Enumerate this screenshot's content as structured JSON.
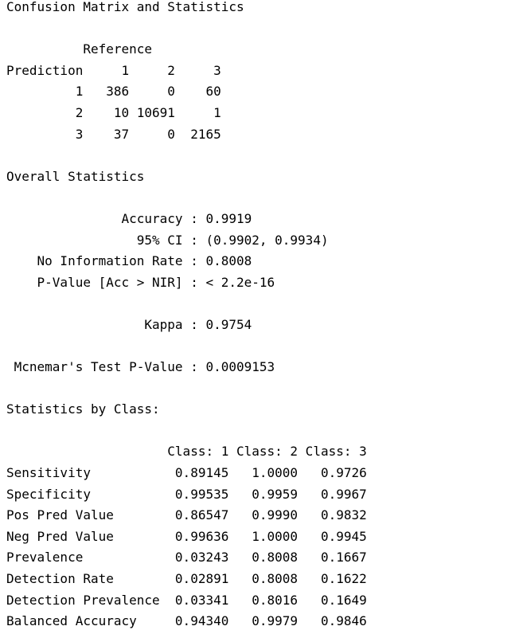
{
  "output_lines": [
    "Confusion Matrix and Statistics",
    "",
    "          Reference",
    "Prediction     1     2     3",
    "         1   386     0    60",
    "         2    10 10691     1",
    "         3    37     0  2165",
    "",
    "Overall Statistics",
    "",
    "               Accuracy : 0.9919",
    "                 95% CI : (0.9902, 0.9934)",
    "    No Information Rate : 0.8008",
    "    P-Value [Acc > NIR] : < 2.2e-16",
    "",
    "                  Kappa : 0.9754",
    "",
    " Mcnemar's Test P-Value : 0.0009153",
    "",
    "Statistics by Class:",
    "",
    "                     Class: 1 Class: 2 Class: 3",
    "Sensitivity           0.89145   1.0000   0.9726",
    "Specificity           0.99535   0.9959   0.9967",
    "Pos Pred Value        0.86547   0.9990   0.9832",
    "Neg Pred Value        0.99636   1.0000   0.9945",
    "Prevalence            0.03243   0.8008   0.1667",
    "Detection Rate        0.02891   0.8008   0.1622",
    "Detection Prevalence  0.03341   0.8016   0.1649",
    "Balanced Accuracy     0.94340   0.9979   0.9846"
  ]
}
